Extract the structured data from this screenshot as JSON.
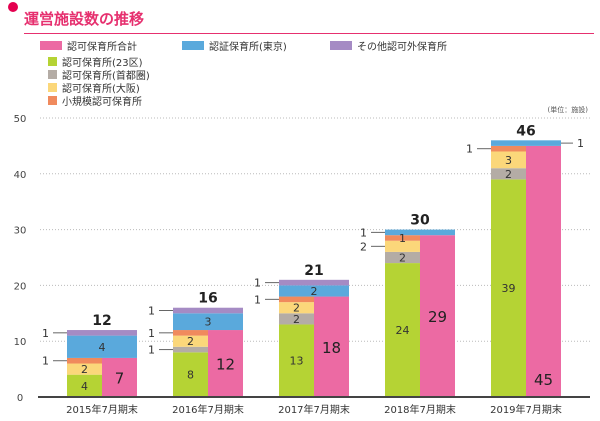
{
  "chart_data": {
    "type": "bar",
    "title": "運営施設数の推移",
    "unit": "(単位：施設)",
    "categories": [
      "2015年7月期末",
      "2016年7月期末",
      "2017年7月期末",
      "2018年7月期末",
      "2019年7月期末"
    ],
    "ylim": [
      0,
      50
    ],
    "yticks": [
      0,
      10,
      20,
      30,
      40,
      50
    ],
    "grid": true,
    "legend_position": "top-left",
    "stacked_series": [
      {
        "name": "認可保育所(23区)",
        "color": "#b5d334",
        "values": [
          4,
          8,
          13,
          24,
          39
        ]
      },
      {
        "name": "認可保育所(首都圏)",
        "color": "#b4aca5",
        "values": [
          0,
          1,
          2,
          2,
          2
        ]
      },
      {
        "name": "認可保育所(大阪)",
        "color": "#fbd77a",
        "values": [
          2,
          2,
          2,
          2,
          3
        ]
      },
      {
        "name": "小規模認可保育所",
        "color": "#f08a5d",
        "values": [
          1,
          1,
          1,
          1,
          1
        ]
      },
      {
        "name": "認証保育所(東京)",
        "color": "#5aa9dc",
        "values": [
          4,
          3,
          2,
          1,
          1
        ]
      },
      {
        "name": "その他認可外保育所",
        "color": "#a58bc4",
        "values": [
          1,
          1,
          1,
          0,
          0
        ]
      }
    ],
    "total_series": {
      "name": "認可保育所合計",
      "color": "#ec6aa3",
      "values": [
        7,
        12,
        18,
        29,
        45
      ]
    },
    "totals": [
      12,
      16,
      21,
      30,
      46
    ]
  }
}
